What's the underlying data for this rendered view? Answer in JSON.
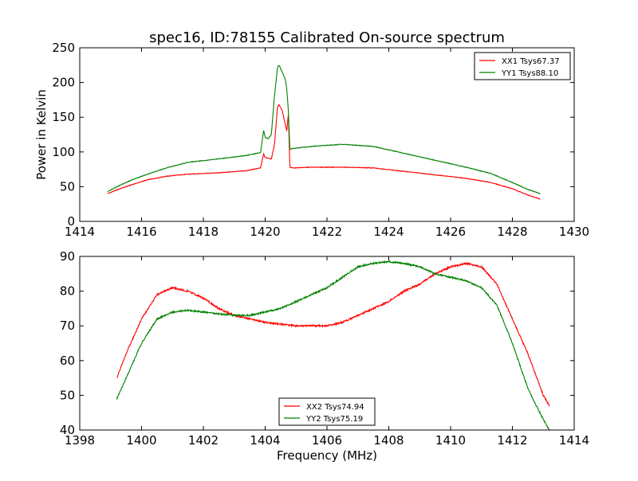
{
  "figure": {
    "title": "spec16, ID:78155 Calibrated On-source spectrum"
  },
  "chart_data": [
    {
      "type": "line",
      "title": "spec16, ID:78155 Calibrated On-source spectrum",
      "xlabel": "",
      "ylabel": "Power in Kelvin",
      "xlim": [
        1414,
        1430
      ],
      "ylim": [
        0,
        250
      ],
      "xticks": [
        1414,
        1416,
        1418,
        1420,
        1422,
        1424,
        1426,
        1428,
        1430
      ],
      "yticks": [
        0,
        50,
        100,
        150,
        200,
        250
      ],
      "legend": "top-right",
      "grid": false,
      "series": [
        {
          "name": "XX1 Tsys67.37",
          "color": "#ff0000",
          "x": [
            1414.9,
            1415.3,
            1415.7,
            1416.2,
            1416.8,
            1417.5,
            1418.5,
            1419.4,
            1419.85,
            1419.95,
            1420.0,
            1420.1,
            1420.2,
            1420.3,
            1420.4,
            1420.45,
            1420.55,
            1420.65,
            1420.7,
            1420.75,
            1420.8,
            1420.9,
            1421.5,
            1422.5,
            1423.5,
            1424.5,
            1425.5,
            1426.5,
            1427.3,
            1428.0,
            1428.5,
            1428.9
          ],
          "y": [
            40,
            47,
            53,
            60,
            65,
            68,
            70,
            73,
            77,
            97,
            92,
            91,
            90,
            110,
            165,
            168,
            160,
            140,
            130,
            155,
            78,
            77,
            78,
            78,
            77,
            72,
            67,
            62,
            56,
            47,
            38,
            32
          ]
        },
        {
          "name": "YY1 Tsys88.10",
          "color": "#008000",
          "x": [
            1414.9,
            1415.3,
            1415.7,
            1416.2,
            1416.8,
            1417.5,
            1418.5,
            1419.4,
            1419.85,
            1419.95,
            1420.0,
            1420.1,
            1420.2,
            1420.3,
            1420.4,
            1420.45,
            1420.55,
            1420.65,
            1420.7,
            1420.75,
            1420.8,
            1420.9,
            1421.5,
            1422.5,
            1423.5,
            1424.5,
            1425.5,
            1426.5,
            1427.3,
            1428.0,
            1428.5,
            1428.9
          ],
          "y": [
            43,
            52,
            60,
            68,
            77,
            85,
            90,
            95,
            99,
            131,
            121,
            119,
            125,
            180,
            222,
            225,
            215,
            205,
            190,
            160,
            104,
            105,
            108,
            111,
            108,
            98,
            88,
            78,
            69,
            56,
            46,
            40
          ]
        }
      ]
    },
    {
      "type": "line",
      "title": "",
      "xlabel": "Frequency (MHz)",
      "ylabel": "",
      "xlim": [
        1398,
        1414
      ],
      "ylim": [
        40,
        90
      ],
      "xticks": [
        1398,
        1400,
        1402,
        1404,
        1406,
        1408,
        1410,
        1412,
        1414
      ],
      "yticks": [
        40,
        50,
        60,
        70,
        80,
        90
      ],
      "legend": "bottom-center",
      "grid": false,
      "series": [
        {
          "name": "XX2 Tsys74.94",
          "color": "#ff0000",
          "x": [
            1399.2,
            1399.5,
            1400.0,
            1400.5,
            1401.0,
            1401.5,
            1402.0,
            1402.5,
            1403.0,
            1403.5,
            1404.0,
            1404.5,
            1405.0,
            1405.5,
            1406.0,
            1406.5,
            1407.0,
            1407.5,
            1408.0,
            1408.5,
            1409.0,
            1409.5,
            1410.0,
            1410.5,
            1411.0,
            1411.5,
            1412.0,
            1412.5,
            1413.0,
            1413.2
          ],
          "y": [
            55,
            62,
            72,
            79,
            81,
            80,
            78,
            75,
            73,
            72,
            71,
            70.5,
            70,
            70,
            70,
            71,
            73,
            75,
            77,
            80,
            82,
            85,
            87,
            88,
            87,
            82,
            72,
            62,
            50,
            47
          ]
        },
        {
          "name": "YY2 Tsys75.19",
          "color": "#008000",
          "x": [
            1399.2,
            1399.5,
            1400.0,
            1400.5,
            1401.0,
            1401.5,
            1402.0,
            1402.5,
            1403.0,
            1403.5,
            1404.0,
            1404.5,
            1405.0,
            1405.5,
            1406.0,
            1406.5,
            1407.0,
            1407.5,
            1408.0,
            1408.5,
            1409.0,
            1409.5,
            1410.0,
            1410.5,
            1411.0,
            1411.5,
            1412.0,
            1412.5,
            1413.0,
            1413.2
          ],
          "y": [
            49,
            55,
            65,
            72,
            74,
            74.5,
            74,
            73.5,
            73,
            73,
            74,
            75,
            77,
            79,
            81,
            84,
            87,
            88,
            88.5,
            88,
            87,
            85,
            84,
            83,
            81,
            76,
            65,
            52,
            43,
            40
          ]
        }
      ]
    }
  ]
}
